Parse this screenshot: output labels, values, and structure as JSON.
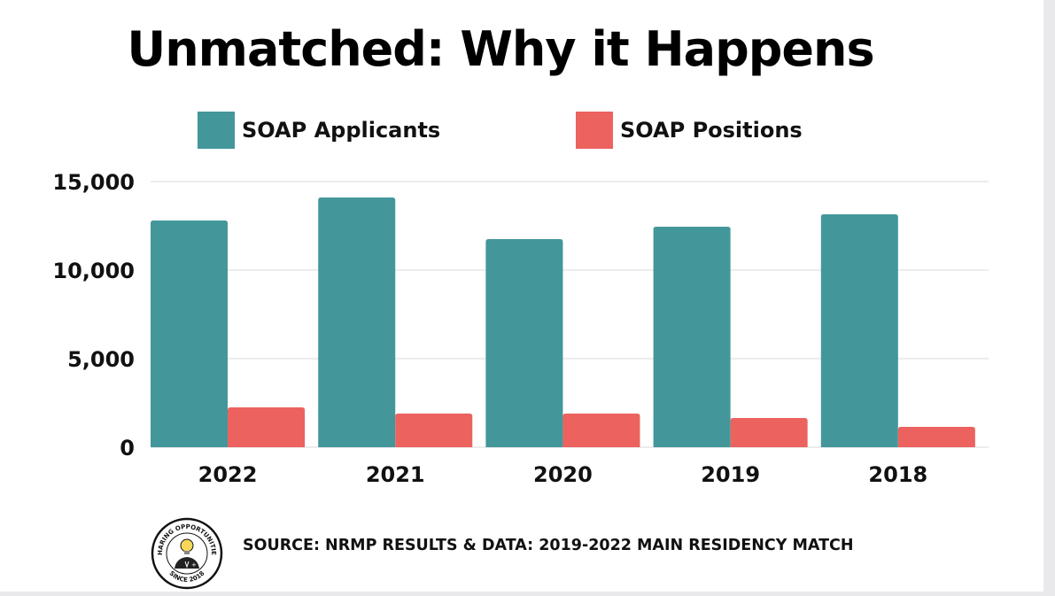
{
  "title": "Unmatched: Why it Happens",
  "source": "SOURCE: NRMP RESULTS & DATA: 2019-2022 MAIN RESIDENCY MATCH",
  "logo": {
    "text_top": "SHARING OPPORTUNITIES",
    "text_bottom": "SINCE 2018",
    "icon": "lightbulb-doctor-icon"
  },
  "colors": {
    "applicants": "#43979b",
    "positions": "#ec625e",
    "grid": "#d8d8d8"
  },
  "chart_data": {
    "type": "bar",
    "categories": [
      "2022",
      "2021",
      "2020",
      "2019",
      "2018"
    ],
    "series": [
      {
        "name": "SOAP Applicants",
        "values": [
          12800,
          14100,
          11750,
          12450,
          13150
        ]
      },
      {
        "name": "SOAP Positions",
        "values": [
          2250,
          1900,
          1900,
          1650,
          1150
        ]
      }
    ],
    "ylim": [
      0,
      15000
    ],
    "yticks": [
      0,
      5000,
      10000,
      15000
    ],
    "ytick_labels": [
      "0",
      "5,000",
      "10,000",
      "15,000"
    ],
    "grid": true,
    "legend": "top"
  }
}
